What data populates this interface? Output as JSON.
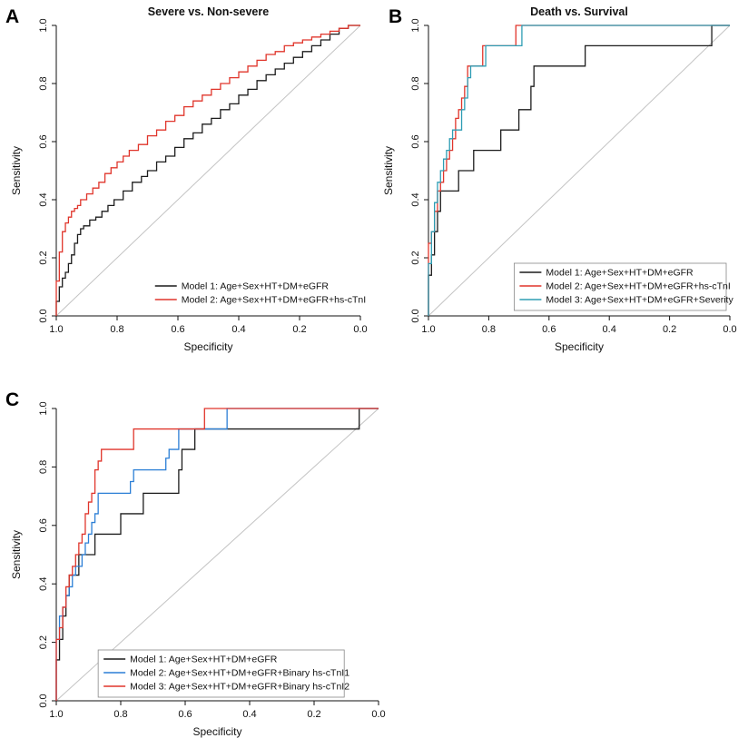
{
  "figure": {
    "background": "#ffffff",
    "panel_labels": [
      "A",
      "B",
      "C"
    ]
  },
  "chart_data": [
    {
      "type": "line",
      "subtype": "roc-step",
      "title": "Severe vs. Non-severe",
      "xlabel": "Specificity",
      "ylabel": "Sensitivity",
      "x_reversed": true,
      "xlim": [
        1.0,
        0.0
      ],
      "ylim": [
        0.0,
        1.0
      ],
      "x_ticks": [
        1.0,
        0.8,
        0.6,
        0.4,
        0.2,
        0.0
      ],
      "y_ticks": [
        0.0,
        0.2,
        0.4,
        0.6,
        0.8,
        1.0
      ],
      "grid": false,
      "diagonal_reference": true,
      "diagonal_color": "#c3c3c3",
      "legend_position": "bottomright",
      "legend_box": false,
      "series": [
        {
          "name": "Model 1: Age+Sex+HT+DM+eGFR",
          "color": "#1c1c1c",
          "points": [
            [
              1,
              0
            ],
            [
              1,
              0.02
            ],
            [
              0.99,
              0.05
            ],
            [
              0.99,
              0.08
            ],
            [
              0.98,
              0.1
            ],
            [
              0.97,
              0.13
            ],
            [
              0.96,
              0.15
            ],
            [
              0.95,
              0.18
            ],
            [
              0.94,
              0.21
            ],
            [
              0.93,
              0.25
            ],
            [
              0.92,
              0.28
            ],
            [
              0.91,
              0.3
            ],
            [
              0.89,
              0.31
            ],
            [
              0.87,
              0.33
            ],
            [
              0.85,
              0.34
            ],
            [
              0.83,
              0.36
            ],
            [
              0.81,
              0.38
            ],
            [
              0.78,
              0.4
            ],
            [
              0.75,
              0.43
            ],
            [
              0.72,
              0.46
            ],
            [
              0.7,
              0.48
            ],
            [
              0.67,
              0.5
            ],
            [
              0.64,
              0.53
            ],
            [
              0.61,
              0.55
            ],
            [
              0.58,
              0.58
            ],
            [
              0.55,
              0.61
            ],
            [
              0.52,
              0.63
            ],
            [
              0.49,
              0.66
            ],
            [
              0.46,
              0.68
            ],
            [
              0.43,
              0.71
            ],
            [
              0.4,
              0.73
            ],
            [
              0.37,
              0.76
            ],
            [
              0.34,
              0.78
            ],
            [
              0.31,
              0.81
            ],
            [
              0.28,
              0.83
            ],
            [
              0.25,
              0.85
            ],
            [
              0.22,
              0.87
            ],
            [
              0.19,
              0.89
            ],
            [
              0.16,
              0.91
            ],
            [
              0.13,
              0.93
            ],
            [
              0.1,
              0.95
            ],
            [
              0.07,
              0.97
            ],
            [
              0.04,
              0.99
            ],
            [
              0,
              1
            ]
          ]
        },
        {
          "name": "Model 2: Age+Sex+HT+DM+eGFR+hs-cTnI",
          "color": "#e0352b",
          "points": [
            [
              1,
              0
            ],
            [
              1,
              0.06
            ],
            [
              0.99,
              0.12
            ],
            [
              0.99,
              0.17
            ],
            [
              0.98,
              0.22
            ],
            [
              0.98,
              0.26
            ],
            [
              0.97,
              0.29
            ],
            [
              0.96,
              0.32
            ],
            [
              0.95,
              0.34
            ],
            [
              0.94,
              0.36
            ],
            [
              0.93,
              0.37
            ],
            [
              0.92,
              0.38
            ],
            [
              0.9,
              0.4
            ],
            [
              0.88,
              0.42
            ],
            [
              0.86,
              0.44
            ],
            [
              0.84,
              0.46
            ],
            [
              0.82,
              0.49
            ],
            [
              0.8,
              0.51
            ],
            [
              0.78,
              0.53
            ],
            [
              0.76,
              0.55
            ],
            [
              0.73,
              0.57
            ],
            [
              0.7,
              0.59
            ],
            [
              0.67,
              0.62
            ],
            [
              0.64,
              0.64
            ],
            [
              0.61,
              0.67
            ],
            [
              0.58,
              0.69
            ],
            [
              0.55,
              0.72
            ],
            [
              0.52,
              0.74
            ],
            [
              0.49,
              0.76
            ],
            [
              0.46,
              0.78
            ],
            [
              0.43,
              0.8
            ],
            [
              0.4,
              0.82
            ],
            [
              0.37,
              0.84
            ],
            [
              0.34,
              0.86
            ],
            [
              0.31,
              0.88
            ],
            [
              0.28,
              0.9
            ],
            [
              0.25,
              0.91
            ],
            [
              0.22,
              0.93
            ],
            [
              0.19,
              0.94
            ],
            [
              0.16,
              0.95
            ],
            [
              0.13,
              0.96
            ],
            [
              0.1,
              0.97
            ],
            [
              0.07,
              0.98
            ],
            [
              0.04,
              0.99
            ],
            [
              0,
              1
            ]
          ]
        }
      ]
    },
    {
      "type": "line",
      "subtype": "roc-step",
      "title": "Death vs. Survival",
      "xlabel": "Specificity",
      "ylabel": "Sensitivity",
      "x_reversed": true,
      "xlim": [
        1.0,
        0.0
      ],
      "ylim": [
        0.0,
        1.0
      ],
      "x_ticks": [
        1.0,
        0.8,
        0.6,
        0.4,
        0.2,
        0.0
      ],
      "y_ticks": [
        0.0,
        0.2,
        0.4,
        0.6,
        0.8,
        1.0
      ],
      "grid": false,
      "diagonal_reference": true,
      "diagonal_color": "#c3c3c3",
      "legend_position": "bottomright",
      "legend_box": true,
      "series": [
        {
          "name": "Model 1: Age+Sex+HT+DM+eGFR",
          "color": "#1c1c1c",
          "points": [
            [
              1,
              0
            ],
            [
              1,
              0.07
            ],
            [
              0.99,
              0.14
            ],
            [
              0.98,
              0.21
            ],
            [
              0.97,
              0.29
            ],
            [
              0.96,
              0.36
            ],
            [
              0.95,
              0.43
            ],
            [
              0.9,
              0.43
            ],
            [
              0.89,
              0.5
            ],
            [
              0.85,
              0.5
            ],
            [
              0.84,
              0.57
            ],
            [
              0.76,
              0.57
            ],
            [
              0.75,
              0.64
            ],
            [
              0.7,
              0.64
            ],
            [
              0.69,
              0.71
            ],
            [
              0.66,
              0.71
            ],
            [
              0.65,
              0.79
            ],
            [
              0.64,
              0.86
            ],
            [
              0.48,
              0.86
            ],
            [
              0.47,
              0.93
            ],
            [
              0.06,
              0.93
            ],
            [
              0.05,
              1
            ],
            [
              0,
              1
            ]
          ]
        },
        {
          "name": "Model 2: Age+Sex+HT+DM+eGFR+hs-cTnI",
          "color": "#e0352b",
          "points": [
            [
              1,
              0
            ],
            [
              1,
              0.21
            ],
            [
              0.99,
              0.25
            ],
            [
              0.98,
              0.29
            ],
            [
              0.97,
              0.36
            ],
            [
              0.96,
              0.43
            ],
            [
              0.95,
              0.46
            ],
            [
              0.94,
              0.5
            ],
            [
              0.93,
              0.54
            ],
            [
              0.92,
              0.57
            ],
            [
              0.91,
              0.61
            ],
            [
              0.9,
              0.68
            ],
            [
              0.89,
              0.71
            ],
            [
              0.88,
              0.75
            ],
            [
              0.87,
              0.79
            ],
            [
              0.86,
              0.86
            ],
            [
              0.82,
              0.86
            ],
            [
              0.81,
              0.93
            ],
            [
              0.71,
              0.93
            ],
            [
              0.7,
              1
            ],
            [
              0,
              1
            ]
          ]
        },
        {
          "name": "Model 3: Age+Sex+HT+DM+eGFR+Severity",
          "color": "#2e9db4",
          "points": [
            [
              1,
              0
            ],
            [
              1,
              0.11
            ],
            [
              0.99,
              0.18
            ],
            [
              0.98,
              0.29
            ],
            [
              0.97,
              0.39
            ],
            [
              0.96,
              0.46
            ],
            [
              0.95,
              0.5
            ],
            [
              0.94,
              0.54
            ],
            [
              0.93,
              0.57
            ],
            [
              0.92,
              0.61
            ],
            [
              0.91,
              0.64
            ],
            [
              0.89,
              0.64
            ],
            [
              0.88,
              0.71
            ],
            [
              0.87,
              0.75
            ],
            [
              0.86,
              0.82
            ],
            [
              0.85,
              0.86
            ],
            [
              0.81,
              0.86
            ],
            [
              0.8,
              0.93
            ],
            [
              0.69,
              0.93
            ],
            [
              0.68,
              1
            ],
            [
              0,
              1
            ]
          ]
        }
      ]
    },
    {
      "type": "line",
      "subtype": "roc-step",
      "title": "",
      "xlabel": "Specificity",
      "ylabel": "Sensitivity",
      "x_reversed": true,
      "xlim": [
        1.0,
        0.0
      ],
      "ylim": [
        0.0,
        1.0
      ],
      "x_ticks": [
        1.0,
        0.8,
        0.6,
        0.4,
        0.2,
        0.0
      ],
      "y_ticks": [
        0.0,
        0.2,
        0.4,
        0.6,
        0.8,
        1.0
      ],
      "grid": false,
      "diagonal_reference": true,
      "diagonal_color": "#c3c3c3",
      "legend_position": "bottom",
      "legend_box": true,
      "series": [
        {
          "name": "Model 1: Age+Sex+HT+DM+eGFR",
          "color": "#1c1c1c",
          "points": [
            [
              1,
              0
            ],
            [
              1,
              0.07
            ],
            [
              0.99,
              0.14
            ],
            [
              0.98,
              0.21
            ],
            [
              0.97,
              0.29
            ],
            [
              0.96,
              0.36
            ],
            [
              0.95,
              0.43
            ],
            [
              0.93,
              0.43
            ],
            [
              0.92,
              0.5
            ],
            [
              0.88,
              0.5
            ],
            [
              0.87,
              0.57
            ],
            [
              0.8,
              0.57
            ],
            [
              0.79,
              0.64
            ],
            [
              0.73,
              0.64
            ],
            [
              0.72,
              0.71
            ],
            [
              0.62,
              0.71
            ],
            [
              0.61,
              0.79
            ],
            [
              0.6,
              0.86
            ],
            [
              0.57,
              0.86
            ],
            [
              0.56,
              0.93
            ],
            [
              0.06,
              0.93
            ],
            [
              0.05,
              1
            ],
            [
              0,
              1
            ]
          ]
        },
        {
          "name": "Model 2: Age+Sex+HT+DM+eGFR+Binary hs-cTnI1",
          "color": "#2c7fd6",
          "points": [
            [
              1,
              0
            ],
            [
              1,
              0.11
            ],
            [
              0.99,
              0.21
            ],
            [
              0.98,
              0.29
            ],
            [
              0.97,
              0.32
            ],
            [
              0.96,
              0.36
            ],
            [
              0.95,
              0.39
            ],
            [
              0.94,
              0.43
            ],
            [
              0.92,
              0.46
            ],
            [
              0.91,
              0.5
            ],
            [
              0.9,
              0.54
            ],
            [
              0.89,
              0.57
            ],
            [
              0.88,
              0.61
            ],
            [
              0.87,
              0.64
            ],
            [
              0.86,
              0.71
            ],
            [
              0.77,
              0.71
            ],
            [
              0.76,
              0.75
            ],
            [
              0.75,
              0.79
            ],
            [
              0.66,
              0.79
            ],
            [
              0.65,
              0.83
            ],
            [
              0.64,
              0.86
            ],
            [
              0.62,
              0.86
            ],
            [
              0.61,
              0.93
            ],
            [
              0.47,
              0.93
            ],
            [
              0.46,
              1
            ],
            [
              0,
              1
            ]
          ]
        },
        {
          "name": "Model 3: Age+Sex+HT+DM+eGFR+Binary hs-cTnI2",
          "color": "#e0352b",
          "points": [
            [
              1,
              0
            ],
            [
              1,
              0.14
            ],
            [
              0.99,
              0.21
            ],
            [
              0.98,
              0.25
            ],
            [
              0.97,
              0.32
            ],
            [
              0.96,
              0.39
            ],
            [
              0.95,
              0.43
            ],
            [
              0.94,
              0.46
            ],
            [
              0.93,
              0.5
            ],
            [
              0.92,
              0.54
            ],
            [
              0.91,
              0.57
            ],
            [
              0.9,
              0.64
            ],
            [
              0.89,
              0.68
            ],
            [
              0.88,
              0.71
            ],
            [
              0.87,
              0.79
            ],
            [
              0.86,
              0.82
            ],
            [
              0.85,
              0.86
            ],
            [
              0.76,
              0.86
            ],
            [
              0.75,
              0.93
            ],
            [
              0.54,
              0.93
            ],
            [
              0.53,
              1
            ],
            [
              0,
              1
            ]
          ]
        }
      ]
    }
  ]
}
